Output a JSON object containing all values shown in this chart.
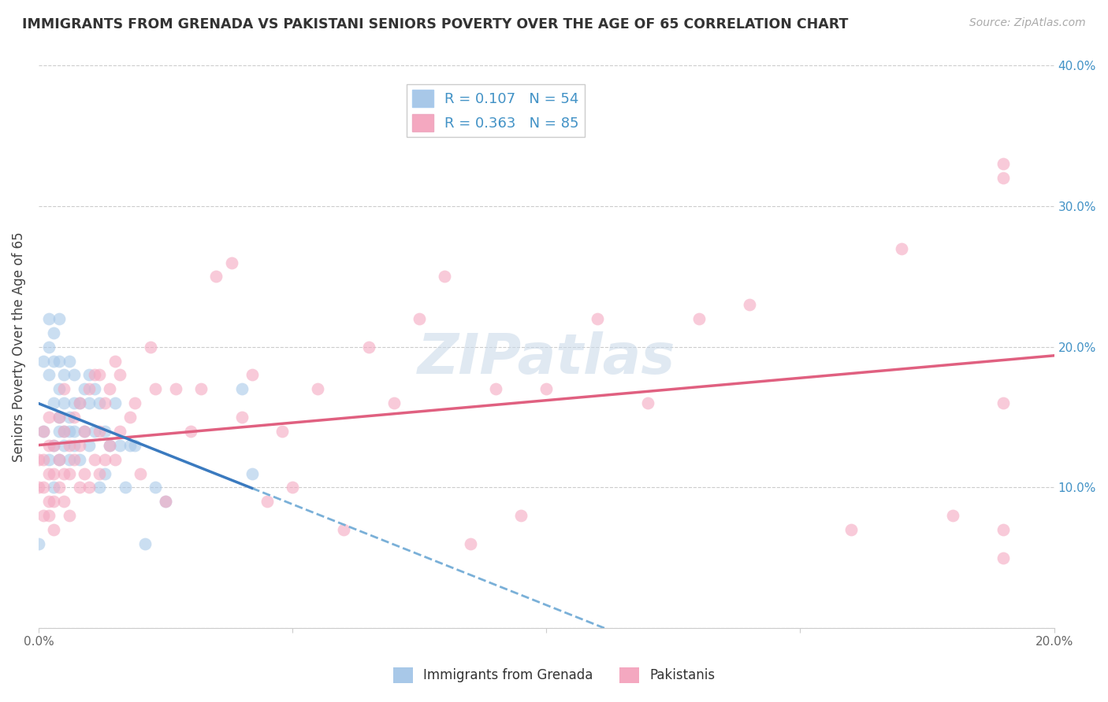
{
  "title": "IMMIGRANTS FROM GRENADA VS PAKISTANI SENIORS POVERTY OVER THE AGE OF 65 CORRELATION CHART",
  "source": "Source: ZipAtlas.com",
  "ylabel": "Seniors Poverty Over the Age of 65",
  "xlim": [
    0,
    0.2
  ],
  "ylim": [
    0,
    0.4
  ],
  "yticks": [
    0,
    0.1,
    0.2,
    0.3,
    0.4
  ],
  "ytick_labels_right": [
    "",
    "10.0%",
    "20.0%",
    "30.0%",
    "40.0%"
  ],
  "xticks": [
    0,
    0.05,
    0.1,
    0.15,
    0.2
  ],
  "xtick_labels": [
    "0.0%",
    "",
    "",
    "",
    "20.0%"
  ],
  "legend_label1": "R = 0.107   N = 54",
  "legend_label2": "R = 0.363   N = 85",
  "color_blue_fill": "#a8c8e8",
  "color_pink_fill": "#f4a8c0",
  "color_line_blue_solid": "#3a7abf",
  "color_line_blue_dash": "#7ab0d8",
  "color_line_pink": "#e06080",
  "color_axis_right": "#4292c6",
  "color_title": "#333333",
  "color_source": "#aaaaaa",
  "color_grid": "#cccccc",
  "blue_x_data": [
    0.0,
    0.001,
    0.001,
    0.002,
    0.002,
    0.002,
    0.002,
    0.003,
    0.003,
    0.003,
    0.003,
    0.003,
    0.004,
    0.004,
    0.004,
    0.004,
    0.004,
    0.004,
    0.005,
    0.005,
    0.005,
    0.005,
    0.006,
    0.006,
    0.006,
    0.006,
    0.007,
    0.007,
    0.007,
    0.007,
    0.008,
    0.008,
    0.009,
    0.009,
    0.01,
    0.01,
    0.01,
    0.011,
    0.011,
    0.012,
    0.012,
    0.013,
    0.013,
    0.014,
    0.015,
    0.016,
    0.017,
    0.018,
    0.019,
    0.021,
    0.023,
    0.025,
    0.04,
    0.042
  ],
  "blue_y_data": [
    0.06,
    0.14,
    0.19,
    0.12,
    0.18,
    0.2,
    0.22,
    0.1,
    0.13,
    0.19,
    0.16,
    0.21,
    0.12,
    0.14,
    0.15,
    0.17,
    0.19,
    0.22,
    0.13,
    0.14,
    0.16,
    0.18,
    0.12,
    0.14,
    0.15,
    0.19,
    0.13,
    0.14,
    0.16,
    0.18,
    0.12,
    0.16,
    0.14,
    0.17,
    0.13,
    0.16,
    0.18,
    0.14,
    0.17,
    0.1,
    0.16,
    0.11,
    0.14,
    0.13,
    0.16,
    0.13,
    0.1,
    0.13,
    0.13,
    0.06,
    0.1,
    0.09,
    0.17,
    0.11
  ],
  "pink_x_data": [
    0.0,
    0.0,
    0.001,
    0.001,
    0.001,
    0.001,
    0.002,
    0.002,
    0.002,
    0.002,
    0.002,
    0.003,
    0.003,
    0.003,
    0.003,
    0.004,
    0.004,
    0.004,
    0.005,
    0.005,
    0.005,
    0.005,
    0.006,
    0.006,
    0.006,
    0.007,
    0.007,
    0.008,
    0.008,
    0.008,
    0.009,
    0.009,
    0.01,
    0.01,
    0.011,
    0.011,
    0.012,
    0.012,
    0.012,
    0.013,
    0.013,
    0.014,
    0.014,
    0.015,
    0.015,
    0.016,
    0.016,
    0.018,
    0.019,
    0.02,
    0.022,
    0.023,
    0.025,
    0.027,
    0.03,
    0.032,
    0.035,
    0.038,
    0.04,
    0.042,
    0.045,
    0.048,
    0.05,
    0.055,
    0.06,
    0.065,
    0.07,
    0.075,
    0.08,
    0.085,
    0.09,
    0.095,
    0.1,
    0.11,
    0.12,
    0.13,
    0.14,
    0.16,
    0.17,
    0.18,
    0.19,
    0.19,
    0.19,
    0.19,
    0.19
  ],
  "pink_y_data": [
    0.1,
    0.12,
    0.08,
    0.1,
    0.12,
    0.14,
    0.08,
    0.09,
    0.11,
    0.13,
    0.15,
    0.07,
    0.09,
    0.11,
    0.13,
    0.1,
    0.12,
    0.15,
    0.09,
    0.11,
    0.14,
    0.17,
    0.08,
    0.11,
    0.13,
    0.12,
    0.15,
    0.1,
    0.13,
    0.16,
    0.11,
    0.14,
    0.1,
    0.17,
    0.12,
    0.18,
    0.11,
    0.14,
    0.18,
    0.12,
    0.16,
    0.13,
    0.17,
    0.12,
    0.19,
    0.14,
    0.18,
    0.15,
    0.16,
    0.11,
    0.2,
    0.17,
    0.09,
    0.17,
    0.14,
    0.17,
    0.25,
    0.26,
    0.15,
    0.18,
    0.09,
    0.14,
    0.1,
    0.17,
    0.07,
    0.2,
    0.16,
    0.22,
    0.25,
    0.06,
    0.17,
    0.08,
    0.17,
    0.22,
    0.16,
    0.22,
    0.23,
    0.07,
    0.27,
    0.08,
    0.33,
    0.07,
    0.16,
    0.05,
    0.32
  ],
  "blue_line_x_end": 0.042,
  "blue_line_intercept": 0.148,
  "blue_line_slope": 0.5,
  "pink_line_intercept": 0.12,
  "pink_line_slope": 0.7
}
